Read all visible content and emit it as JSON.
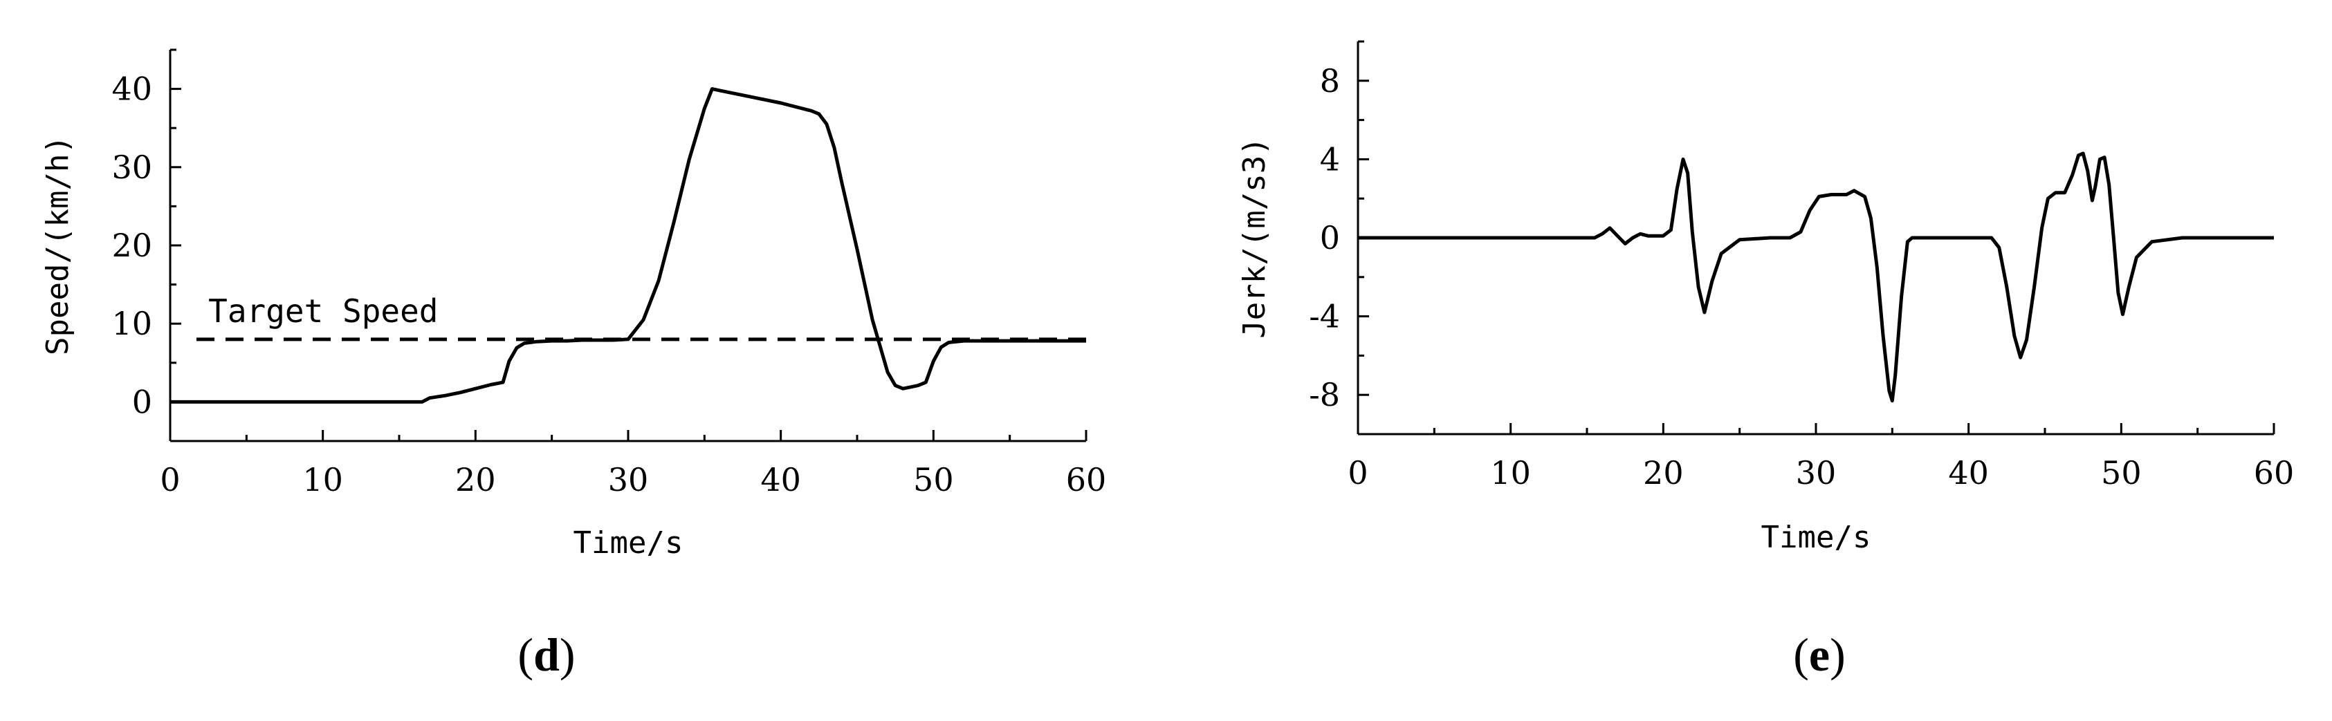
{
  "chart_data": [
    {
      "type": "line",
      "panel_label": {
        "open": "(",
        "letter": "d",
        "close": ")"
      },
      "xlabel": "Time/s",
      "ylabel": "Speed/(km/h)",
      "xlim": [
        0,
        60
      ],
      "ylim": [
        -5,
        45
      ],
      "xticks": [
        0,
        10,
        20,
        30,
        40,
        50,
        60
      ],
      "yticks": [
        0,
        10,
        20,
        30,
        40
      ],
      "grid": false,
      "annotations": [
        {
          "text": "Target Speed",
          "x": 2.5,
          "y": 10.2
        }
      ],
      "reference_lines": [
        {
          "name": "Target Speed",
          "y": 8,
          "style": "dashed"
        }
      ],
      "series": [
        {
          "x": [
            0,
            16.5,
            17,
            18,
            19,
            20,
            21,
            21.8,
            22.2,
            22.7,
            23.2,
            24,
            25,
            26,
            27,
            28,
            29,
            30,
            31,
            32,
            33,
            34,
            35,
            35.5,
            36,
            38,
            40,
            42,
            42.5,
            43,
            43.5,
            44,
            45,
            46,
            47,
            47.5,
            48,
            48.5,
            49,
            49.5,
            50,
            50.5,
            51,
            52,
            54,
            56,
            58,
            60
          ],
          "y": [
            0,
            0,
            0.5,
            0.8,
            1.2,
            1.7,
            2.2,
            2.5,
            5.2,
            6.9,
            7.5,
            7.7,
            7.8,
            7.8,
            7.9,
            7.9,
            7.9,
            8,
            10.5,
            15.5,
            23,
            31,
            37.5,
            40,
            39.8,
            39.0,
            38.2,
            37.2,
            36.8,
            35.5,
            32.5,
            28,
            19.5,
            10.5,
            3.8,
            2.1,
            1.7,
            1.9,
            2.1,
            2.5,
            5.2,
            7.0,
            7.6,
            7.8,
            7.8,
            7.8,
            7.8,
            7.8
          ]
        }
      ]
    },
    {
      "type": "line",
      "panel_label": {
        "open": "(",
        "letter": "e",
        "close": ")"
      },
      "xlabel": "Time/s",
      "ylabel": "Jerk/(m/s3)",
      "xlim": [
        0,
        60
      ],
      "ylim": [
        -10,
        10
      ],
      "xticks": [
        0,
        10,
        20,
        30,
        40,
        50,
        60
      ],
      "yticks": [
        8,
        4,
        0,
        -4,
        -8
      ],
      "grid": false,
      "series": [
        {
          "x": [
            0,
            15.5,
            16,
            16.5,
            17,
            17.5,
            18,
            18.5,
            19,
            20,
            20.5,
            20.9,
            21.3,
            21.6,
            21.9,
            22.3,
            22.7,
            23.2,
            23.8,
            25,
            27,
            28.3,
            29,
            29.6,
            30.2,
            31,
            32,
            32.5,
            33.2,
            33.6,
            34,
            34.4,
            34.8,
            35,
            35.2,
            35.6,
            36,
            36.3,
            38,
            40,
            41.5,
            42,
            42.5,
            43,
            43.4,
            43.8,
            44.3,
            44.8,
            45.2,
            45.7,
            46.3,
            46.8,
            47.2,
            47.5,
            47.8,
            48.1,
            48.3,
            48.6,
            48.9,
            49.2,
            49.5,
            49.8,
            50.1,
            50.5,
            51,
            52,
            54,
            56,
            58,
            60
          ],
          "y": [
            0,
            0,
            0.2,
            0.5,
            0.1,
            -0.3,
            0,
            0.2,
            0.1,
            0.1,
            0.4,
            2.5,
            4.0,
            3.3,
            0.3,
            -2.5,
            -3.8,
            -2.2,
            -0.8,
            -0.1,
            0,
            0,
            0.3,
            1.4,
            2.1,
            2.2,
            2.2,
            2.4,
            2.1,
            1.0,
            -1.5,
            -5.0,
            -7.8,
            -8.3,
            -7.0,
            -3.0,
            -0.2,
            0,
            0,
            0,
            0,
            -0.5,
            -2.5,
            -5.0,
            -6.1,
            -5.2,
            -2.5,
            0.5,
            2.0,
            2.3,
            2.3,
            3.2,
            4.2,
            4.3,
            3.4,
            1.9,
            2.6,
            4.0,
            4.1,
            2.7,
            0,
            -2.8,
            -3.9,
            -2.5,
            -1.0,
            -0.2,
            0,
            0,
            0,
            0
          ]
        }
      ]
    }
  ]
}
